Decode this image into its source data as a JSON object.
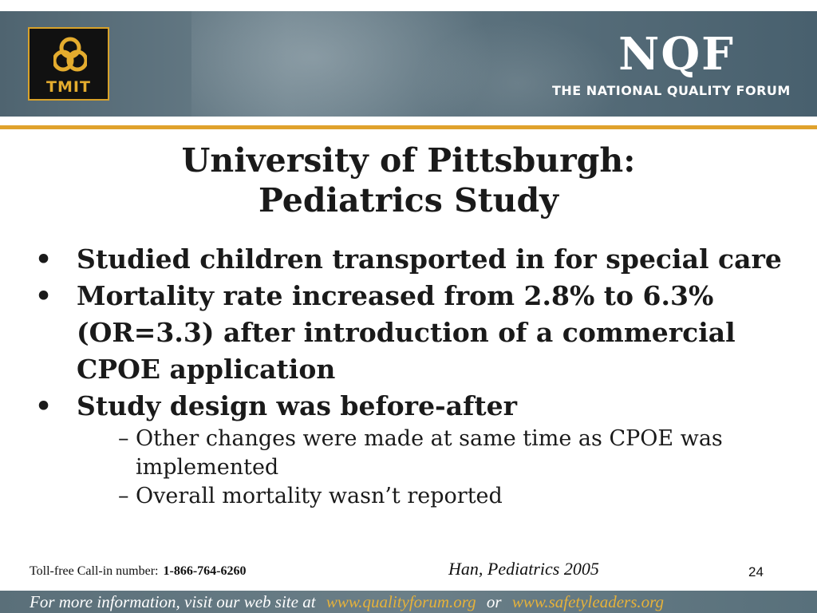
{
  "header": {
    "left_logo_text": "TMIT",
    "right_logo_main": "NQF",
    "right_logo_sub": "The National Quality Forum"
  },
  "slide": {
    "title_line1": "University of Pittsburgh:",
    "title_line2": "Pediatrics Study",
    "bullets": [
      {
        "text": "Studied children transported in for special care"
      },
      {
        "text": "Mortality rate increased from 2.8% to 6.3% (OR=3.3) after introduction of a commercial CPOE application"
      },
      {
        "text": "Study design was before-after"
      }
    ],
    "sub_bullets": [
      {
        "text": "Other changes were made at same time as CPOE was implemented"
      },
      {
        "text": "Overall mortality wasn’t reported"
      }
    ],
    "bullet_marker": "•",
    "sub_bullet_marker": "–"
  },
  "footer_row": {
    "toll_label": "Toll-free Call-in number:",
    "toll_number": "1-866-764-6260",
    "citation": "Han, Pediatrics 2005",
    "page_number": "24"
  },
  "footer_bar": {
    "text_prefix": "For more information, visit our web site at",
    "url1": "www.qualityforum.org",
    "or_text": "or",
    "url2": "www.safetyleaders.org"
  }
}
